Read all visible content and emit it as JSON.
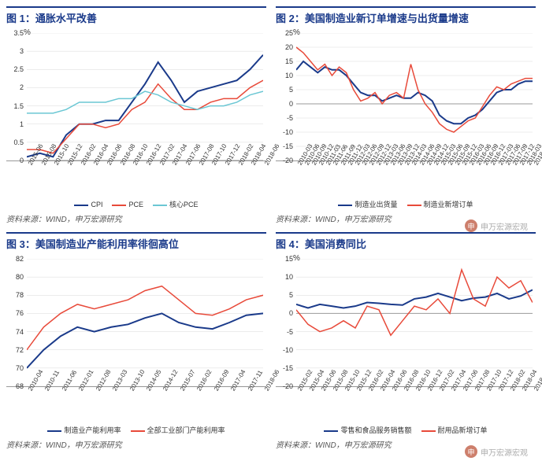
{
  "source_text": "资料来源：WIND，申万宏源研究",
  "watermark_text": "申万宏源宏观",
  "colors": {
    "navy": "#1a3a8a",
    "red": "#e84a3a",
    "cyan": "#6bc7d4",
    "grid": "#d9d9d9",
    "axis": "#999999"
  },
  "chart1": {
    "title": "图 1：通胀水平改善",
    "unit": "%",
    "ymin": 0,
    "ymax": 3.5,
    "ystep": 0.5,
    "x": [
      "2015-06",
      "2015-08",
      "2015-10",
      "2015-12",
      "2016-02",
      "2016-04",
      "2016-06",
      "2016-08",
      "2016-10",
      "2016-12",
      "2017-02",
      "2017-04",
      "2017-06",
      "2017-08",
      "2017-10",
      "2017-12",
      "2018-02",
      "2018-04",
      "2018-06"
    ],
    "series": [
      {
        "name": "CPI",
        "color": "#1a3a8a",
        "width": 2,
        "y": [
          0.1,
          0.2,
          0.1,
          0.7,
          1.0,
          1.0,
          1.1,
          1.1,
          1.6,
          2.1,
          2.7,
          2.2,
          1.6,
          1.9,
          2.0,
          2.1,
          2.2,
          2.5,
          2.9
        ]
      },
      {
        "name": "PCE",
        "color": "#e84a3a",
        "width": 1.5,
        "y": [
          0.3,
          0.3,
          0.2,
          0.6,
          1.0,
          1.0,
          0.9,
          1.0,
          1.4,
          1.6,
          2.1,
          1.7,
          1.4,
          1.4,
          1.6,
          1.7,
          1.7,
          2.0,
          2.2
        ]
      },
      {
        "name": "核心PCE",
        "color": "#6bc7d4",
        "width": 1.5,
        "y": [
          1.3,
          1.3,
          1.3,
          1.4,
          1.6,
          1.6,
          1.6,
          1.7,
          1.7,
          1.9,
          1.8,
          1.6,
          1.5,
          1.4,
          1.5,
          1.5,
          1.6,
          1.8,
          1.9
        ]
      }
    ]
  },
  "chart2": {
    "title": "图 2：美国制造业新订单增速与出货量增速",
    "unit": "%",
    "ymin": -20,
    "ymax": 25,
    "ystep": 5,
    "x": [
      "2010-03",
      "2010-06",
      "2010-09",
      "2010-12",
      "2011-03",
      "2011-06",
      "2011-09",
      "2011-12",
      "2012-03",
      "2012-06",
      "2012-09",
      "2012-12",
      "2013-03",
      "2013-06",
      "2013-09",
      "2013-12",
      "2014-03",
      "2014-06",
      "2014-09",
      "2014-12",
      "2015-03",
      "2015-06",
      "2015-09",
      "2015-12",
      "2016-03",
      "2016-06",
      "2016-09",
      "2016-12",
      "2017-03",
      "2017-06",
      "2017-09",
      "2017-12",
      "2018-03",
      "2018-06"
    ],
    "series": [
      {
        "name": "制造业出货量",
        "color": "#1a3a8a",
        "width": 2,
        "y": [
          12,
          15,
          13,
          11,
          13,
          12,
          12,
          10,
          7,
          4,
          3,
          3,
          1,
          2,
          3,
          2,
          2,
          4,
          3,
          1,
          -4,
          -6,
          -7,
          -7,
          -5,
          -4,
          -2,
          1,
          4,
          5,
          5,
          7,
          8,
          8
        ]
      },
      {
        "name": "制造业新增订单",
        "color": "#e84a3a",
        "width": 1.5,
        "y": [
          20,
          18,
          15,
          12,
          14,
          10,
          13,
          11,
          5,
          1,
          2,
          4,
          0,
          3,
          4,
          2,
          14,
          5,
          0,
          -3,
          -7,
          -9,
          -10,
          -8,
          -6,
          -5,
          -1,
          3,
          6,
          5,
          7,
          8,
          9,
          9
        ]
      }
    ]
  },
  "chart3": {
    "title": "图 3：美国制造业产能利用率徘徊高位",
    "unit": "",
    "ymin": 68,
    "ymax": 82,
    "ystep": 2,
    "x": [
      "2010-04",
      "2010-11",
      "2011-06",
      "2012-01",
      "2012-08",
      "2013-03",
      "2013-10",
      "2014-05",
      "2014-12",
      "2015-07",
      "2016-02",
      "2016-09",
      "2017-04",
      "2017-11",
      "2018-06"
    ],
    "series": [
      {
        "name": "制造业产能利用率",
        "color": "#1a3a8a",
        "width": 2,
        "y": [
          70,
          72,
          73.5,
          74.5,
          74,
          74.5,
          74.8,
          75.5,
          76,
          75,
          74.5,
          74.3,
          75,
          75.8,
          76
        ]
      },
      {
        "name": "全部工业部门产能利用率",
        "color": "#e84a3a",
        "width": 1.5,
        "y": [
          72,
          74.5,
          76,
          77,
          76.5,
          77,
          77.5,
          78.5,
          79,
          77.5,
          76,
          75.8,
          76.5,
          77.5,
          78
        ]
      }
    ]
  },
  "chart4": {
    "title": "图 4：美国消费同比",
    "unit": "%",
    "ymin": -20,
    "ymax": 15,
    "ystep": 5,
    "x": [
      "2015-02",
      "2015-04",
      "2015-06",
      "2015-08",
      "2015-10",
      "2015-12",
      "2016-02",
      "2016-04",
      "2016-06",
      "2016-08",
      "2016-10",
      "2016-12",
      "2017-02",
      "2017-04",
      "2017-06",
      "2017-08",
      "2017-10",
      "2017-12",
      "2018-02",
      "2018-04",
      "2018-06"
    ],
    "series": [
      {
        "name": "零售和食品服务销售额",
        "color": "#1a3a8a",
        "width": 2,
        "y": [
          2.5,
          1.5,
          2.5,
          2.0,
          1.5,
          2.0,
          3.0,
          2.8,
          2.5,
          2.3,
          4.0,
          4.5,
          5.5,
          4.5,
          3.5,
          4.2,
          4.5,
          5.5,
          4.0,
          4.8,
          6.5
        ]
      },
      {
        "name": "耐用品新增订单",
        "color": "#e84a3a",
        "width": 1.5,
        "y": [
          1,
          -3,
          -5,
          -4,
          -2,
          -4,
          2,
          1,
          -6,
          -2,
          2,
          1,
          4,
          0,
          12,
          4,
          2,
          10,
          7,
          9,
          3
        ]
      }
    ]
  }
}
